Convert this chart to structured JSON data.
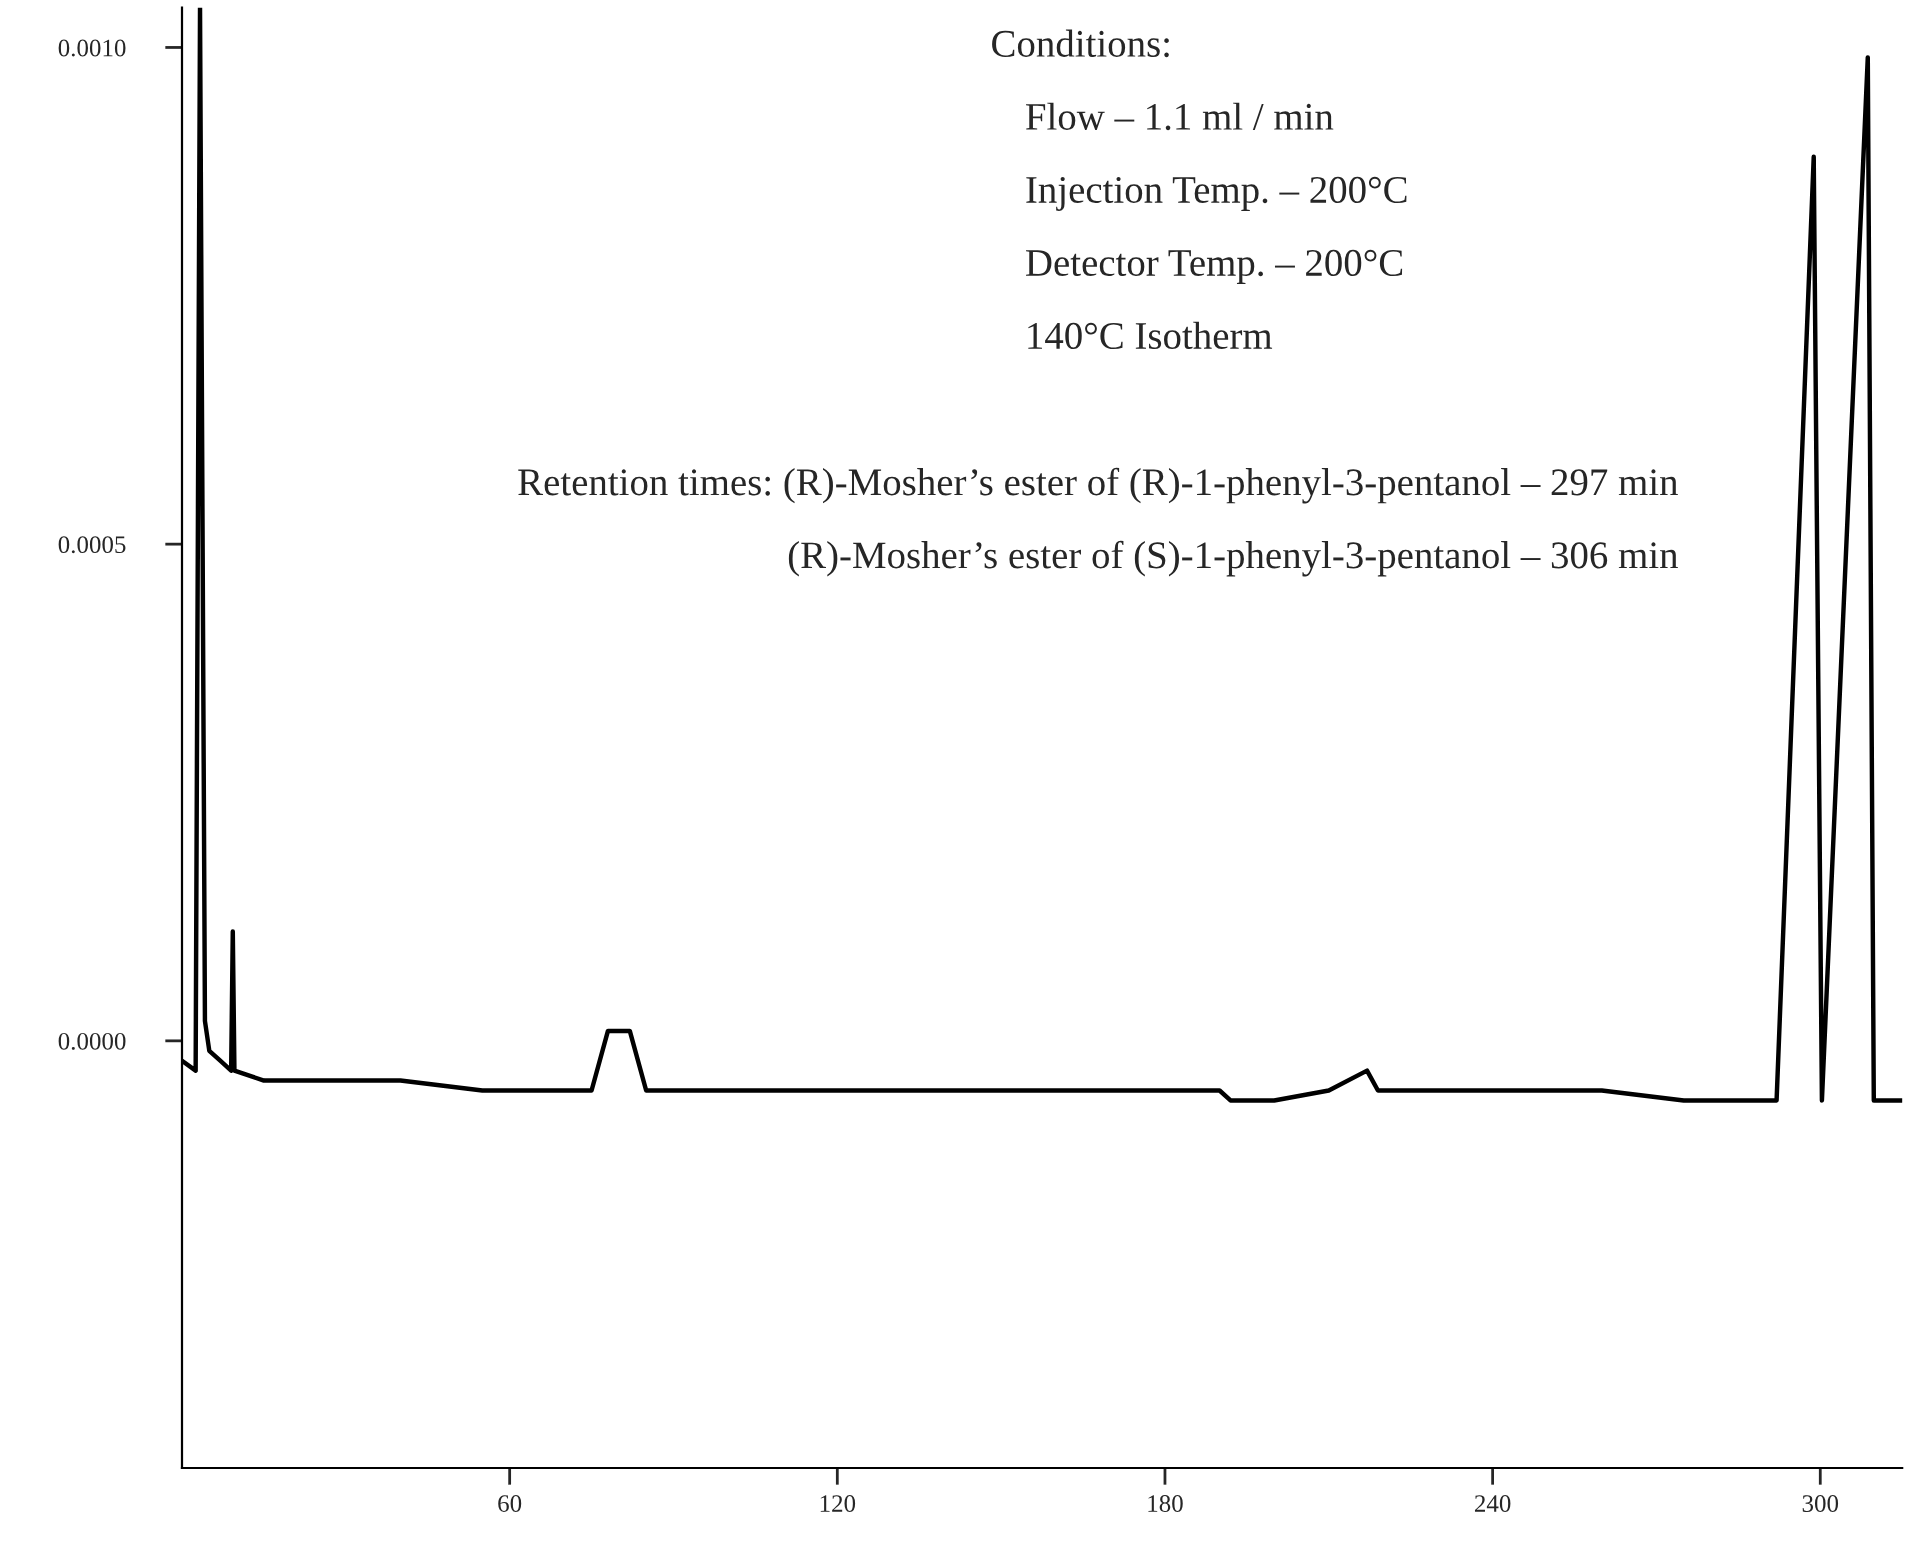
{
  "chart_data": {
    "type": "line",
    "annotations": [
      "Conditions:",
      "Flow – 1.1 ml / min",
      "Injection Temp. – 200°C",
      "Detector Temp. – 200°C",
      "140°C Isotherm",
      "Retention times: (R)-Mosher’s ester of (R)-1-phenyl-3-pentanol – 297 min",
      "(R)-Mosher’s ester of (S)-1-phenyl-3-pentanol – 306 min"
    ],
    "x": [
      0,
      2.5,
      3.3,
      4.2,
      5,
      7,
      9,
      9.3,
      9.6,
      15,
      25,
      40,
      55,
      70,
      75,
      78,
      82,
      85,
      100,
      130,
      160,
      180,
      190,
      192,
      200,
      210,
      217,
      219,
      240,
      260,
      275,
      290,
      292,
      298.8,
      300.3,
      308.7,
      309.8,
      315
    ],
    "series": [
      {
        "color": "#000000",
        "values": [
          -2e-05,
          -3e-05,
          0.00104,
          2e-05,
          -1e-05,
          -2e-05,
          -3e-05,
          0.00011,
          -3e-05,
          -4e-05,
          -4e-05,
          -4e-05,
          -5e-05,
          -5e-05,
          -5e-05,
          1e-05,
          1e-05,
          -5e-05,
          -5e-05,
          -5e-05,
          -5e-05,
          -5e-05,
          -5e-05,
          -6e-05,
          -6e-05,
          -5e-05,
          -3e-05,
          -5e-05,
          -5e-05,
          -5e-05,
          -6e-05,
          -6e-05,
          -6e-05,
          0.00089,
          -6e-05,
          0.00099,
          -6e-05,
          -6e-05
        ]
      }
    ],
    "xlim": [
      0,
      315
    ],
    "ylim": [
      -0.00043,
      0.00104
    ],
    "xticks": [
      60,
      120,
      180,
      240,
      300
    ],
    "yticks": [
      {
        "value": 0,
        "label": "0.0000"
      },
      {
        "value": 0.0005,
        "label": "0.0005"
      },
      {
        "value": 0.001,
        "label": "0.0010"
      }
    ],
    "grid": false,
    "marker": "none",
    "line_style": "solid"
  }
}
